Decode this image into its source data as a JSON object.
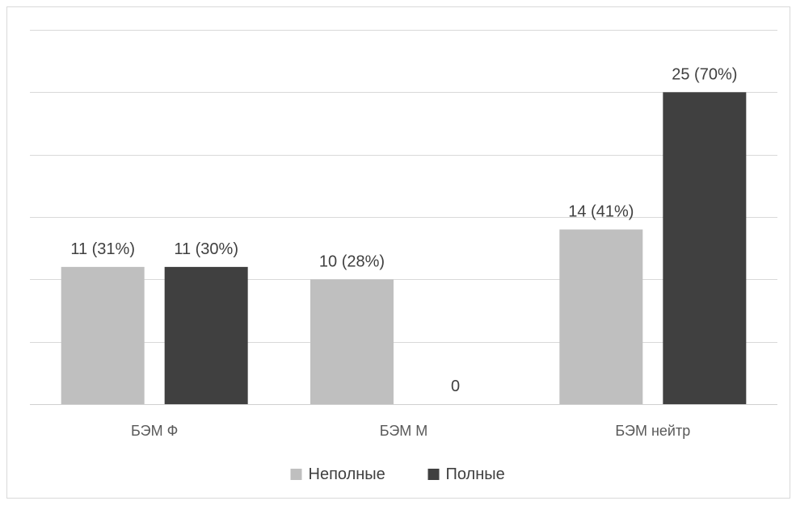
{
  "chart_data": {
    "type": "bar",
    "categories": [
      "БЭМ Ф",
      "БЭМ М",
      "БЭМ нейтр"
    ],
    "series": [
      {
        "name": "Неполные",
        "values": [
          11,
          10,
          14
        ],
        "labels": [
          "11 (31%)",
          "10 (28%)",
          "14 (41%)"
        ],
        "color": "#bfbfbf"
      },
      {
        "name": "Полные",
        "values": [
          11,
          0,
          25
        ],
        "labels": [
          "11 (30%)",
          "0",
          "25 (70%)"
        ],
        "color": "#404040"
      }
    ],
    "ylim": [
      0,
      30
    ],
    "y_grid_step": 5,
    "grid": true,
    "legend_position": "bottom",
    "title": "",
    "xlabel": "",
    "ylabel": ""
  }
}
